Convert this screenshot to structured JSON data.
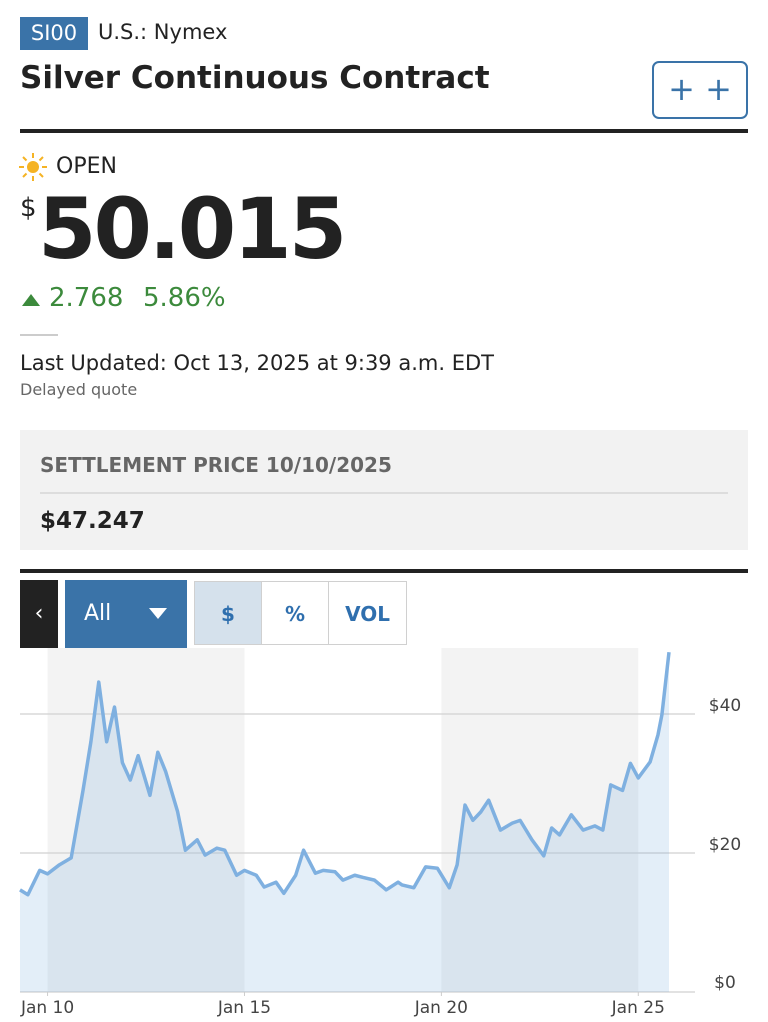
{
  "header": {
    "symbol": "SI00",
    "exchange": "U.S.: Nymex",
    "title": "Silver Continuous Contract"
  },
  "quote": {
    "status": "OPEN",
    "currency": "$",
    "price": "50.015",
    "change": "2.768",
    "change_percent": "5.86%",
    "last_updated": "Last Updated: Oct 13, 2025 at 9:39 a.m. EDT",
    "delay_note": "Delayed quote"
  },
  "settlement": {
    "label": "SETTLEMENT PRICE 10/10/2025",
    "value": "$47.247"
  },
  "chart_controls": {
    "range": "All",
    "modes": [
      "$",
      "%",
      "VOL"
    ]
  },
  "chart_data": {
    "type": "area",
    "color": "#7fb0e0",
    "x": [
      2009.3,
      2009.5,
      2009.8,
      2010.0,
      2010.3,
      2010.6,
      2010.9,
      2011.1,
      2011.3,
      2011.5,
      2011.7,
      2011.9,
      2012.1,
      2012.3,
      2012.6,
      2012.8,
      2013.0,
      2013.3,
      2013.5,
      2013.8,
      2014.0,
      2014.3,
      2014.5,
      2014.8,
      2015.0,
      2015.3,
      2015.5,
      2015.8,
      2016.0,
      2016.3,
      2016.5,
      2016.8,
      2017.0,
      2017.3,
      2017.5,
      2017.8,
      2018.0,
      2018.3,
      2018.6,
      2018.9,
      2019.0,
      2019.3,
      2019.6,
      2019.9,
      2020.2,
      2020.4,
      2020.6,
      2020.8,
      2021.0,
      2021.2,
      2021.5,
      2021.8,
      2022.0,
      2022.3,
      2022.6,
      2022.8,
      2023.0,
      2023.3,
      2023.6,
      2023.9,
      2024.1,
      2024.3,
      2024.6,
      2024.8,
      2025.0,
      2025.3,
      2025.5,
      2025.6,
      2025.78
    ],
    "values": [
      14.7,
      14,
      17.5,
      17,
      18.3,
      19.3,
      29,
      36,
      44.6,
      36,
      41,
      33,
      30.5,
      34,
      28.3,
      34.5,
      31.7,
      26,
      20.4,
      21.9,
      19.7,
      20.7,
      20.4,
      16.8,
      17.5,
      16.8,
      15.1,
      15.8,
      14.2,
      16.8,
      20.4,
      17.1,
      17.5,
      17.3,
      16.1,
      16.8,
      16.5,
      16.1,
      14.7,
      15.8,
      15.4,
      15,
      18,
      17.8,
      15,
      18.3,
      26.9,
      24.7,
      25.9,
      27.6,
      23.3,
      24.3,
      24.7,
      21.9,
      19.6,
      23.6,
      22.6,
      25.5,
      23.3,
      23.9,
      23.3,
      29.8,
      29,
      32.9,
      30.8,
      33.1,
      37,
      39.9,
      48.9
    ],
    "xlim": [
      2009.3,
      2025.78
    ],
    "xticks": [
      {
        "value": 2010,
        "label": "Jan 10"
      },
      {
        "value": 2015,
        "label": "Jan 15"
      },
      {
        "value": 2020,
        "label": "Jan 20"
      },
      {
        "value": 2025,
        "label": "Jan 25"
      }
    ],
    "ylim": [
      0,
      49.5
    ],
    "yticks": [
      {
        "value": 0,
        "label": "$0"
      },
      {
        "value": 20,
        "label": "$20"
      },
      {
        "value": 40,
        "label": "$40"
      }
    ],
    "grid": true
  }
}
